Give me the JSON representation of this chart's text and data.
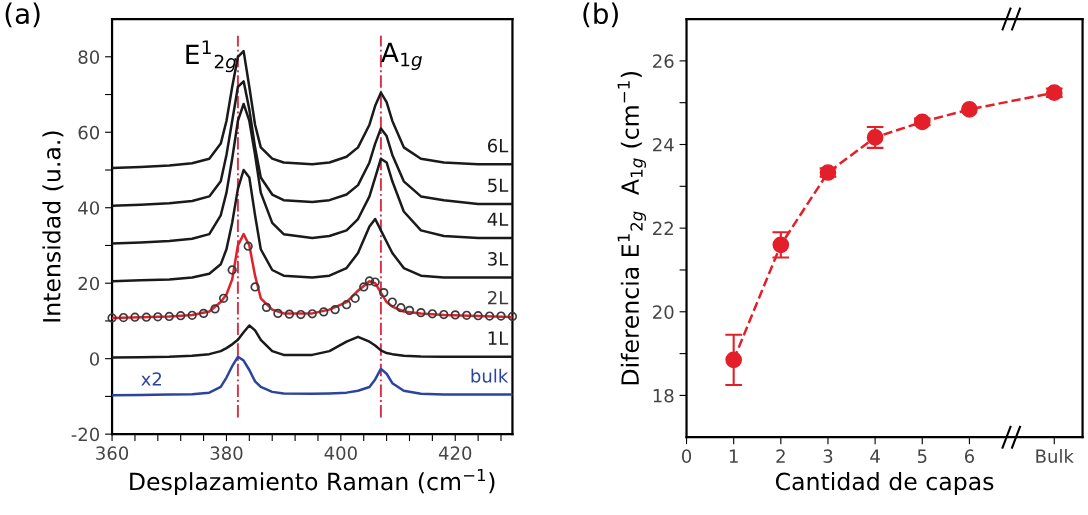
{
  "chart_data": [
    {
      "type": "line",
      "title": "(a)",
      "xlabel": "Desplazamiento Raman (cm$^{−1}$)",
      "ylabel": "Intensidad (u.a.)",
      "xlim": [
        360,
        430
      ],
      "xticks": [
        360,
        {
          "value": 364,
          "label": null
        },
        {
          "value": 368,
          "label": null
        },
        {
          "value": 372,
          "label": null
        },
        {
          "value": 376,
          "label": null
        },
        380,
        {
          "value": 384,
          "label": null
        },
        {
          "value": 388,
          "label": null
        },
        {
          "value": 392,
          "label": null
        },
        {
          "value": 396,
          "label": null
        },
        400,
        {
          "value": 404,
          "label": null
        },
        {
          "value": 408,
          "label": null
        },
        {
          "value": 412,
          "label": null
        },
        {
          "value": 416,
          "label": null
        },
        420,
        {
          "value": 424,
          "label": null
        },
        {
          "value": 428,
          "label": null
        }
      ],
      "ylim": [
        -20,
        90
      ],
      "yticks": [
        -20,
        {
          "value": -10,
          "label": null
        },
        0,
        {
          "value": 10,
          "label": null
        },
        20,
        {
          "value": 30,
          "label": null
        },
        40,
        {
          "value": 50,
          "label": null
        },
        60,
        {
          "value": 70,
          "label": null
        },
        80
      ],
      "marker": "none",
      "line_style": "solid",
      "x": [
        360,
        365,
        370,
        374,
        377,
        379,
        380,
        381,
        382,
        383,
        384,
        385,
        386,
        388,
        390,
        395,
        398,
        401,
        403,
        405,
        406,
        407,
        408,
        409,
        411,
        414,
        418,
        424,
        430
      ],
      "series": [
        {
          "name": "6L",
          "color": "#1a1a1a",
          "values": [
            50.5,
            50.8,
            51.2,
            51.8,
            53,
            57,
            63,
            72,
            80,
            81.5,
            72,
            62,
            56,
            53,
            52,
            51.5,
            52,
            53.5,
            56,
            62,
            67,
            70.5,
            68,
            63,
            56,
            53,
            52,
            51.5,
            51.5
          ]
        },
        {
          "name": "5L",
          "color": "#1a1a1a",
          "values": [
            40.5,
            40.8,
            41.2,
            41.8,
            43,
            47,
            54,
            63,
            72,
            73.5,
            66,
            56,
            48,
            43.5,
            42,
            41.5,
            42,
            43.5,
            46,
            52,
            57,
            61,
            59,
            54,
            47,
            43,
            42,
            41,
            41
          ]
        },
        {
          "name": "4L",
          "color": "#1a1a1a",
          "values": [
            30.5,
            30.8,
            31.2,
            31.8,
            33,
            38,
            44,
            53,
            63,
            67.5,
            63,
            54,
            44,
            36,
            33,
            32,
            32.5,
            34,
            37,
            43,
            48,
            53,
            52,
            47,
            39,
            34,
            32.5,
            32,
            32
          ]
        },
        {
          "name": "3L",
          "color": "#1a1a1a",
          "values": [
            20.5,
            20.8,
            21,
            21.5,
            22.5,
            25,
            29,
            36,
            45,
            50,
            48,
            38,
            29,
            23.5,
            22,
            21.5,
            22,
            24,
            28,
            35,
            37,
            34,
            31,
            28,
            24,
            22,
            21.5,
            21.5,
            21.5
          ]
        },
        {
          "color": "#e3202a",
          "values": [
            10.8,
            11,
            11.2,
            11.6,
            12.5,
            15,
            17,
            21,
            30,
            33,
            30,
            22,
            16,
            13,
            12,
            12,
            13,
            15,
            18,
            20.5,
            20,
            17.5,
            15,
            13.8,
            12.5,
            12,
            11.6,
            11.3,
            11
          ]
        },
        {
          "name": "2L",
          "type": "scatter",
          "marker": "circle",
          "color": "#3a3a3a",
          "x": [
            360,
            362,
            364,
            366,
            368,
            370,
            372,
            374,
            376,
            378,
            379.5,
            381,
            383.8,
            385,
            387,
            389,
            391,
            393,
            395,
            397,
            399,
            401,
            402.5,
            404,
            405,
            406,
            407.5,
            409,
            410.5,
            412,
            414,
            416,
            418,
            420,
            422,
            424,
            426,
            428,
            430
          ],
          "values": [
            10.8,
            10.9,
            11,
            11,
            11.1,
            11.2,
            11.4,
            11.5,
            12,
            13.2,
            16,
            23.5,
            29.8,
            19,
            13.6,
            12,
            11.8,
            11.7,
            11.9,
            12.4,
            13,
            14.3,
            16,
            19,
            20.6,
            20.3,
            17.5,
            15,
            13.5,
            12.8,
            12.2,
            11.9,
            11.7,
            11.6,
            11.5,
            11.4,
            11.3,
            11.3,
            11.2
          ]
        },
        {
          "name": "1L",
          "color": "#1a1a1a",
          "values": [
            0.3,
            0.4,
            0.5,
            0.8,
            1.2,
            2,
            2.8,
            3.8,
            5,
            7,
            8.8,
            7.5,
            5,
            2,
            1,
            1,
            2,
            4.5,
            5.8,
            4.5,
            3.5,
            2.2,
            1.5,
            1.2,
            0.8,
            0.6,
            0.5,
            0.5,
            0.5
          ]
        },
        {
          "name": "bulk",
          "color": "#2b44a0",
          "values": [
            -9.7,
            -9.6,
            -9.5,
            -9.4,
            -9,
            -7.5,
            -5,
            -2,
            0.5,
            -0.5,
            -3,
            -6,
            -7.5,
            -8.8,
            -9.2,
            -9.3,
            -9.2,
            -9,
            -8.5,
            -7.5,
            -5.5,
            -2.7,
            -4,
            -6.5,
            -8.5,
            -9.3,
            -9.5,
            -9.5,
            -9.5
          ]
        }
      ],
      "ref_lines": [
        {
          "axis": "x",
          "value": 382,
          "label": "E$^{1}$$_{2g}$",
          "color": "#d6334a",
          "line_style": "dashdot"
        },
        {
          "axis": "x",
          "value": 407,
          "label": "A$_{1g}$",
          "color": "#d6334a",
          "line_style": "dashdot"
        }
      ],
      "annotations": [
        {
          "text": "x2",
          "x": 365,
          "y": -9.6
        }
      ]
    },
    {
      "type": "line",
      "title": "(b)",
      "xlabel": "Cantidad de capas",
      "ylabel": "Diferencia E$^{1}$$_{2g}$  A$_{1g}$ (cm$^{−1}$)",
      "xlim": [
        0,
        8.4
      ],
      "xticks": [
        0,
        1,
        2,
        3,
        4,
        5,
        6,
        {
          "value": 7.8,
          "label": "Bulk"
        }
      ],
      "ylim": [
        17,
        27
      ],
      "yticks": [
        18,
        {
          "value": 19,
          "label": null
        },
        20,
        {
          "value": 21,
          "label": null
        },
        22,
        {
          "value": 23,
          "label": null
        },
        24,
        {
          "value": 25,
          "label": null
        },
        26
      ],
      "marker": "circle",
      "line_style": "dashed",
      "x": [
        1,
        2,
        3,
        4,
        5,
        6,
        7.8
      ],
      "series": [
        {
          "color": "#e3202a",
          "values": [
            18.85,
            21.6,
            23.33,
            24.17,
            24.54,
            24.84,
            25.24
          ],
          "errors": [
            0.6,
            0.3,
            0.1,
            0.25,
            0.08,
            null,
            0.1
          ]
        }
      ]
    }
  ]
}
